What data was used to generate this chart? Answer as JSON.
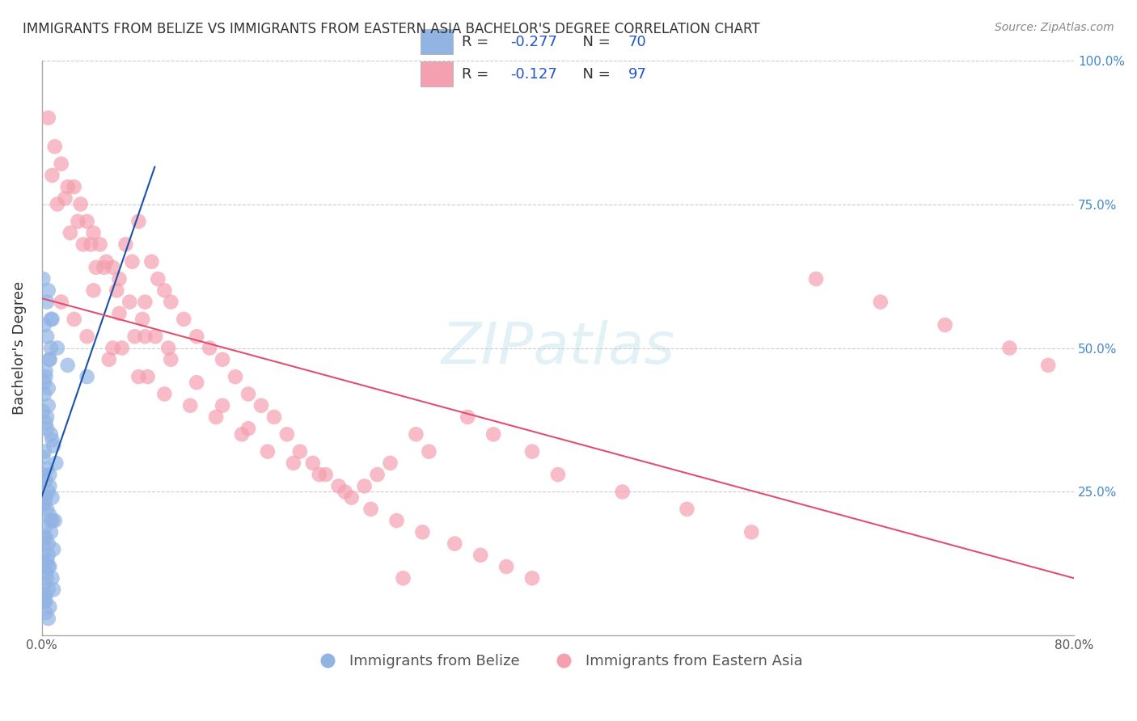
{
  "title": "IMMIGRANTS FROM BELIZE VS IMMIGRANTS FROM EASTERN ASIA BACHELOR'S DEGREE CORRELATION CHART",
  "source": "Source: ZipAtlas.com",
  "xlabel_blue": "Immigrants from Belize",
  "xlabel_pink": "Immigrants from Eastern Asia",
  "ylabel": "Bachelor's Degree",
  "xlim": [
    0.0,
    0.8
  ],
  "ylim": [
    0.0,
    1.0
  ],
  "xticks": [
    0.0,
    0.1,
    0.2,
    0.3,
    0.4,
    0.5,
    0.6,
    0.7,
    0.8
  ],
  "yticks": [
    0.0,
    0.25,
    0.5,
    0.75,
    1.0
  ],
  "ytick_labels": [
    "",
    "25.0%",
    "50.0%",
    "75.0%",
    "100.0%"
  ],
  "xtick_labels": [
    "0.0%",
    "",
    "",
    "",
    "",
    "",
    "",
    "",
    "80.0%"
  ],
  "R_blue": -0.277,
  "N_blue": 70,
  "R_pink": -0.127,
  "N_pink": 97,
  "blue_color": "#92b4e3",
  "pink_color": "#f4a0b0",
  "blue_line_color": "#1a52a8",
  "pink_line_color": "#e05070",
  "watermark": "ZIPatlas",
  "background_color": "#ffffff",
  "grid_color": "#cccccc",
  "axis_color": "#aaaaaa",
  "blue_scatter_x": [
    0.005,
    0.008,
    0.012,
    0.003,
    0.006,
    0.002,
    0.004,
    0.007,
    0.009,
    0.011,
    0.001,
    0.003,
    0.005,
    0.008,
    0.002,
    0.004,
    0.006,
    0.01,
    0.003,
    0.007,
    0.002,
    0.005,
    0.009,
    0.001,
    0.004,
    0.006,
    0.003,
    0.008,
    0.002,
    0.005,
    0.001,
    0.003,
    0.007,
    0.004,
    0.006,
    0.002,
    0.005,
    0.003,
    0.008,
    0.001,
    0.004,
    0.006,
    0.002,
    0.007,
    0.003,
    0.005,
    0.001,
    0.004,
    0.009,
    0.002,
    0.006,
    0.003,
    0.005,
    0.001,
    0.004,
    0.002,
    0.007,
    0.003,
    0.005,
    0.001,
    0.004,
    0.002,
    0.006,
    0.003,
    0.008,
    0.001,
    0.005,
    0.003,
    0.035,
    0.02
  ],
  "blue_scatter_y": [
    0.6,
    0.55,
    0.5,
    0.45,
    0.48,
    0.42,
    0.38,
    0.35,
    0.33,
    0.3,
    0.28,
    0.27,
    0.25,
    0.24,
    0.23,
    0.22,
    0.21,
    0.2,
    0.19,
    0.18,
    0.17,
    0.16,
    0.15,
    0.14,
    0.13,
    0.12,
    0.11,
    0.1,
    0.09,
    0.08,
    0.07,
    0.06,
    0.55,
    0.52,
    0.48,
    0.44,
    0.4,
    0.37,
    0.34,
    0.31,
    0.29,
    0.26,
    0.23,
    0.2,
    0.17,
    0.14,
    0.12,
    0.1,
    0.08,
    0.06,
    0.05,
    0.04,
    0.03,
    0.62,
    0.58,
    0.54,
    0.5,
    0.46,
    0.43,
    0.39,
    0.36,
    0.32,
    0.28,
    0.24,
    0.2,
    0.16,
    0.12,
    0.07,
    0.45,
    0.47
  ],
  "pink_scatter_x": [
    0.005,
    0.015,
    0.025,
    0.035,
    0.045,
    0.055,
    0.065,
    0.075,
    0.085,
    0.095,
    0.01,
    0.02,
    0.03,
    0.04,
    0.05,
    0.06,
    0.07,
    0.08,
    0.09,
    0.1,
    0.008,
    0.018,
    0.028,
    0.038,
    0.048,
    0.058,
    0.068,
    0.078,
    0.088,
    0.098,
    0.012,
    0.022,
    0.032,
    0.042,
    0.052,
    0.062,
    0.072,
    0.082,
    0.11,
    0.12,
    0.13,
    0.14,
    0.15,
    0.16,
    0.17,
    0.18,
    0.19,
    0.2,
    0.21,
    0.22,
    0.23,
    0.24,
    0.25,
    0.26,
    0.27,
    0.28,
    0.29,
    0.3,
    0.33,
    0.35,
    0.38,
    0.4,
    0.45,
    0.5,
    0.55,
    0.6,
    0.65,
    0.7,
    0.75,
    0.78,
    0.015,
    0.025,
    0.035,
    0.055,
    0.075,
    0.095,
    0.115,
    0.135,
    0.155,
    0.175,
    0.195,
    0.215,
    0.235,
    0.255,
    0.275,
    0.295,
    0.32,
    0.34,
    0.36,
    0.38,
    0.04,
    0.06,
    0.08,
    0.1,
    0.12,
    0.14,
    0.16
  ],
  "pink_scatter_y": [
    0.9,
    0.82,
    0.78,
    0.72,
    0.68,
    0.64,
    0.68,
    0.72,
    0.65,
    0.6,
    0.85,
    0.78,
    0.75,
    0.7,
    0.65,
    0.62,
    0.65,
    0.58,
    0.62,
    0.58,
    0.8,
    0.76,
    0.72,
    0.68,
    0.64,
    0.6,
    0.58,
    0.55,
    0.52,
    0.5,
    0.75,
    0.7,
    0.68,
    0.64,
    0.48,
    0.5,
    0.52,
    0.45,
    0.55,
    0.52,
    0.5,
    0.48,
    0.45,
    0.42,
    0.4,
    0.38,
    0.35,
    0.32,
    0.3,
    0.28,
    0.26,
    0.24,
    0.26,
    0.28,
    0.3,
    0.1,
    0.35,
    0.32,
    0.38,
    0.35,
    0.32,
    0.28,
    0.25,
    0.22,
    0.18,
    0.62,
    0.58,
    0.54,
    0.5,
    0.47,
    0.58,
    0.55,
    0.52,
    0.5,
    0.45,
    0.42,
    0.4,
    0.38,
    0.35,
    0.32,
    0.3,
    0.28,
    0.25,
    0.22,
    0.2,
    0.18,
    0.16,
    0.14,
    0.12,
    0.1,
    0.6,
    0.56,
    0.52,
    0.48,
    0.44,
    0.4,
    0.36
  ]
}
